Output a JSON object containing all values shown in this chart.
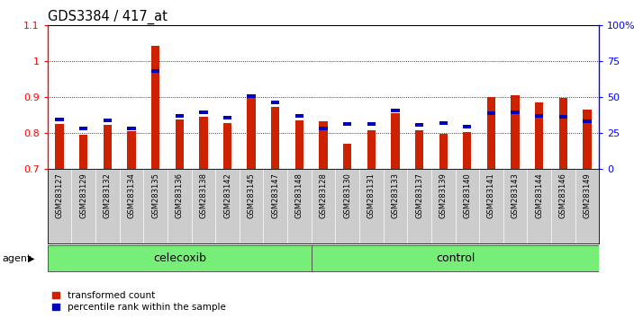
{
  "title": "GDS3384 / 417_at",
  "samples": [
    "GSM283127",
    "GSM283129",
    "GSM283132",
    "GSM283134",
    "GSM283135",
    "GSM283136",
    "GSM283138",
    "GSM283142",
    "GSM283145",
    "GSM283147",
    "GSM283148",
    "GSM283128",
    "GSM283130",
    "GSM283131",
    "GSM283133",
    "GSM283137",
    "GSM283139",
    "GSM283140",
    "GSM283141",
    "GSM283143",
    "GSM283144",
    "GSM283146",
    "GSM283149"
  ],
  "red_values": [
    0.825,
    0.795,
    0.822,
    0.805,
    1.042,
    0.836,
    0.845,
    0.828,
    0.9,
    0.872,
    0.834,
    0.832,
    0.77,
    0.807,
    0.855,
    0.808,
    0.797,
    0.802,
    0.9,
    0.905,
    0.885,
    0.898,
    0.865
  ],
  "blue_values": [
    0.832,
    0.808,
    0.83,
    0.808,
    0.968,
    0.843,
    0.852,
    0.837,
    0.898,
    0.88,
    0.842,
    0.808,
    0.82,
    0.82,
    0.858,
    0.818,
    0.822,
    0.812,
    0.85,
    0.852,
    0.843,
    0.84,
    0.828
  ],
  "ylim_left": [
    0.7,
    1.1
  ],
  "ylim_right": [
    0.0,
    100.0
  ],
  "yticks_left": [
    0.7,
    0.8,
    0.9,
    1.0,
    1.1
  ],
  "ytick_left_labels": [
    "0.7",
    "0.8",
    "0.9",
    "1",
    "1.1"
  ],
  "yticks_right": [
    0,
    25,
    50,
    75,
    100
  ],
  "ytick_right_labels": [
    "0",
    "25",
    "50",
    "75",
    "100%"
  ],
  "bar_color_red": "#CC2200",
  "bar_color_blue": "#0000BB",
  "bg_color": "#FFFFFF",
  "plot_bg": "#FFFFFF",
  "tick_bg": "#CCCCCC",
  "group_color": "#77EE77",
  "group_label": "agent",
  "celecoxib_label": "celecoxib",
  "control_label": "control",
  "legend_red": "transformed count",
  "legend_blue": "percentile rank within the sample",
  "bar_width": 0.35,
  "blue_bar_height": 0.01
}
